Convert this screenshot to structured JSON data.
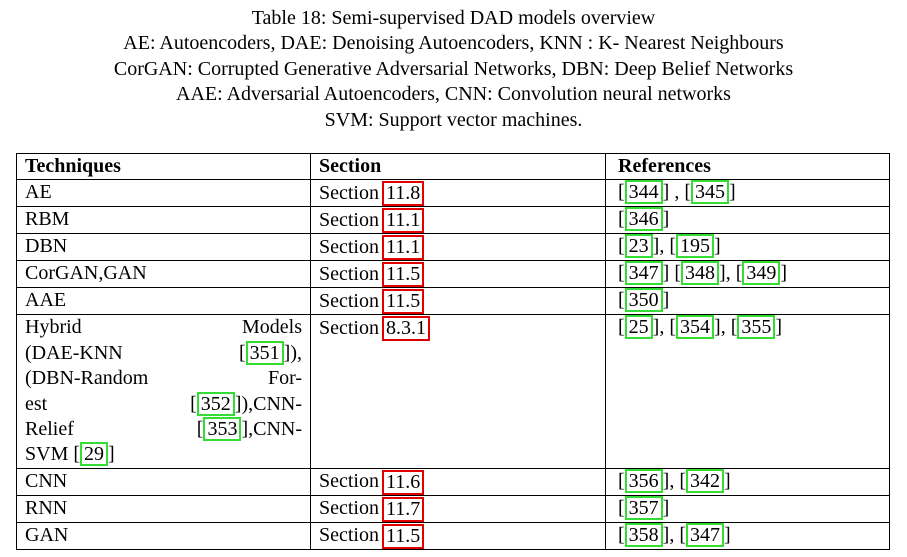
{
  "caption": {
    "line1": "Table 18: Semi-supervised DAD models overview",
    "line2": "AE: Autoencoders, DAE: Denoising Autoencoders, KNN : K- Nearest Neighbours",
    "line3": "CorGAN: Corrupted Generative Adversarial Networks, DBN: Deep Belief Networks",
    "line4": "AAE: Adversarial Autoencoders, CNN: Convolution neural networks",
    "line5": "SVM: Support vector machines."
  },
  "table": {
    "headers": [
      "Techniques",
      "Section",
      "References"
    ],
    "section_prefix": "Section",
    "rows": [
      {
        "technique": "AE",
        "section": "11.8",
        "refs": [
          "344",
          "345"
        ],
        "seps": [
          " , "
        ]
      },
      {
        "technique": "RBM",
        "section": "11.1",
        "refs": [
          "346"
        ],
        "seps": []
      },
      {
        "technique": "DBN",
        "section": "11.1",
        "refs": [
          "23",
          "195"
        ],
        "seps": [
          ", "
        ]
      },
      {
        "technique": "CorGAN,GAN",
        "section": "11.5",
        "refs": [
          "347",
          "348",
          "349"
        ],
        "seps": [
          "  ",
          ", "
        ]
      },
      {
        "technique": "AAE",
        "section": "11.5",
        "refs": [
          "350"
        ],
        "seps": []
      },
      {
        "technique": "hybrid",
        "section": "8.3.1",
        "refs": [
          "25",
          "354",
          "355"
        ],
        "seps": [
          ", ",
          ", "
        ]
      },
      {
        "technique": "CNN",
        "section": "11.6",
        "refs": [
          "356",
          "342"
        ],
        "seps": [
          ", "
        ]
      },
      {
        "technique": "RNN",
        "section": "11.7",
        "refs": [
          "357"
        ],
        "seps": []
      },
      {
        "technique": "GAN",
        "section": "11.5",
        "refs": [
          "358",
          "347"
        ],
        "seps": [
          ", "
        ]
      }
    ],
    "hybrid": {
      "l1a": "Hybrid",
      "l1b": "Models",
      "l2a": "(DAE-KNN",
      "l2cite": "351",
      "l2b": "]),",
      "l3a": "(DBN-Random",
      "l3b": "For-",
      "l4a": "est",
      "l4cite": "352",
      "l4b": "]),CNN-",
      "l5a": "Relief",
      "l5cite": "353",
      "l5b": "],CNN-",
      "l6a": "SVM [",
      "l6cite": "29",
      "l6b": "]"
    }
  },
  "colors": {
    "section_box": "#e00000",
    "citation_box": "#33dd33"
  }
}
